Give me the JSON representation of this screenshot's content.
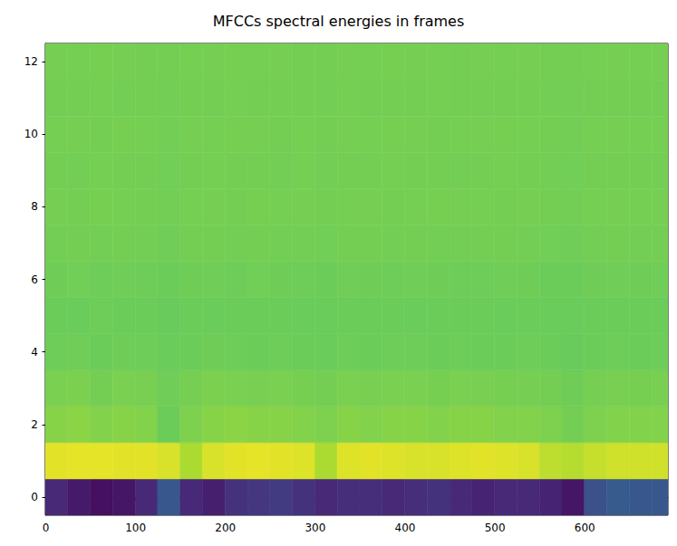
{
  "chart_data": {
    "type": "heatmap",
    "title": "MFCCs spectral energies in frames",
    "x_bins": [
      -0.5,
      24.5,
      49.5,
      74.5,
      99.5,
      124.5,
      149.5,
      174.5,
      199.5,
      224.5,
      249.5,
      274.5,
      299.5,
      324.5,
      349.5,
      374.5,
      399.5,
      424.5,
      449.5,
      474.5,
      499.5,
      524.5,
      549.5,
      574.5,
      599.5,
      624.5,
      649.5,
      674.5,
      692.5
    ],
    "y": [
      0,
      1,
      2,
      3,
      4,
      5,
      6,
      7,
      8,
      9,
      10,
      11,
      12
    ],
    "z": [
      [
        -470,
        -500,
        -520,
        -510,
        -470,
        -360,
        -470,
        -490,
        -450,
        -440,
        -430,
        -450,
        -470,
        -460,
        -460,
        -470,
        -460,
        -450,
        -470,
        -480,
        -470,
        -470,
        -480,
        -510,
        -380,
        -350,
        -360,
        -360
      ],
      [
        120,
        125,
        125,
        120,
        120,
        110,
        60,
        110,
        120,
        125,
        120,
        115,
        60,
        115,
        120,
        115,
        110,
        110,
        115,
        120,
        115,
        110,
        80,
        70,
        90,
        100,
        100,
        100
      ],
      [
        20,
        25,
        15,
        20,
        15,
        -10,
        10,
        20,
        25,
        20,
        20,
        15,
        10,
        20,
        15,
        20,
        20,
        15,
        20,
        20,
        15,
        15,
        10,
        0,
        10,
        15,
        15,
        15
      ],
      [
        5,
        8,
        0,
        6,
        4,
        -5,
        2,
        8,
        6,
        4,
        5,
        3,
        0,
        6,
        4,
        5,
        6,
        3,
        5,
        4,
        3,
        2,
        0,
        -6,
        2,
        4,
        3,
        4
      ],
      [
        -8,
        -5,
        -10,
        -6,
        -8,
        -12,
        -9,
        -6,
        -7,
        -9,
        -8,
        -10,
        -12,
        -7,
        -9,
        -8,
        -7,
        -10,
        -8,
        -9,
        -10,
        -8,
        -11,
        -14,
        -9,
        -8,
        -9,
        -8
      ],
      [
        -10,
        -12,
        -8,
        -11,
        -9,
        -14,
        -10,
        -12,
        -9,
        -11,
        -10,
        -12,
        -13,
        -10,
        -11,
        -9,
        -12,
        -10,
        -11,
        -10,
        -12,
        -11,
        -13,
        -12,
        -10,
        -11,
        -10,
        -11
      ],
      [
        -6,
        -4,
        -8,
        -5,
        -7,
        -10,
        -6,
        -5,
        -7,
        -4,
        -6,
        -8,
        -9,
        -5,
        -6,
        -7,
        -5,
        -6,
        -8,
        -7,
        -5,
        -6,
        -9,
        -10,
        -6,
        -5,
        -6,
        -5
      ],
      [
        -2,
        0,
        -3,
        -1,
        -2,
        -5,
        -1,
        0,
        -2,
        -1,
        -3,
        -2,
        -4,
        -1,
        0,
        -2,
        -1,
        -3,
        -2,
        -1,
        0,
        -2,
        -4,
        -5,
        -2,
        -1,
        -2,
        -1
      ],
      [
        2,
        0,
        3,
        1,
        -1,
        -3,
        1,
        2,
        0,
        3,
        1,
        2,
        -1,
        1,
        2,
        0,
        1,
        3,
        2,
        1,
        0,
        2,
        -1,
        -2,
        1,
        2,
        1,
        2
      ],
      [
        0,
        -2,
        1,
        -1,
        0,
        -4,
        -1,
        1,
        -1,
        0,
        -2,
        1,
        -3,
        0,
        -1,
        1,
        0,
        -1,
        -2,
        0,
        1,
        -1,
        -3,
        -4,
        -1,
        0,
        -1,
        0
      ],
      [
        1,
        2,
        0,
        3,
        1,
        -2,
        2,
        1,
        3,
        2,
        0,
        1,
        -1,
        2,
        1,
        3,
        2,
        0,
        1,
        2,
        3,
        1,
        -1,
        -2,
        1,
        2,
        1,
        2
      ],
      [
        -1,
        0,
        1,
        -2,
        0,
        -3,
        0,
        -1,
        1,
        0,
        -1,
        0,
        -2,
        1,
        0,
        -1,
        0,
        1,
        -1,
        0,
        -1,
        0,
        -2,
        -3,
        0,
        -1,
        0,
        -1
      ],
      [
        2,
        1,
        3,
        2,
        0,
        -1,
        1,
        2,
        3,
        1,
        2,
        0,
        -1,
        2,
        1,
        3,
        2,
        1,
        0,
        2,
        1,
        2,
        0,
        -1,
        1,
        2,
        1,
        2
      ]
    ],
    "zlim": [
      -550,
      150
    ],
    "xlim": [
      -0.5,
      692.5
    ],
    "xticks": [
      0,
      100,
      200,
      300,
      400,
      500,
      600
    ],
    "ylim": [
      -0.5,
      12.5
    ],
    "yticks": [
      0,
      2,
      4,
      6,
      8,
      10,
      12
    ],
    "grid": false
  }
}
